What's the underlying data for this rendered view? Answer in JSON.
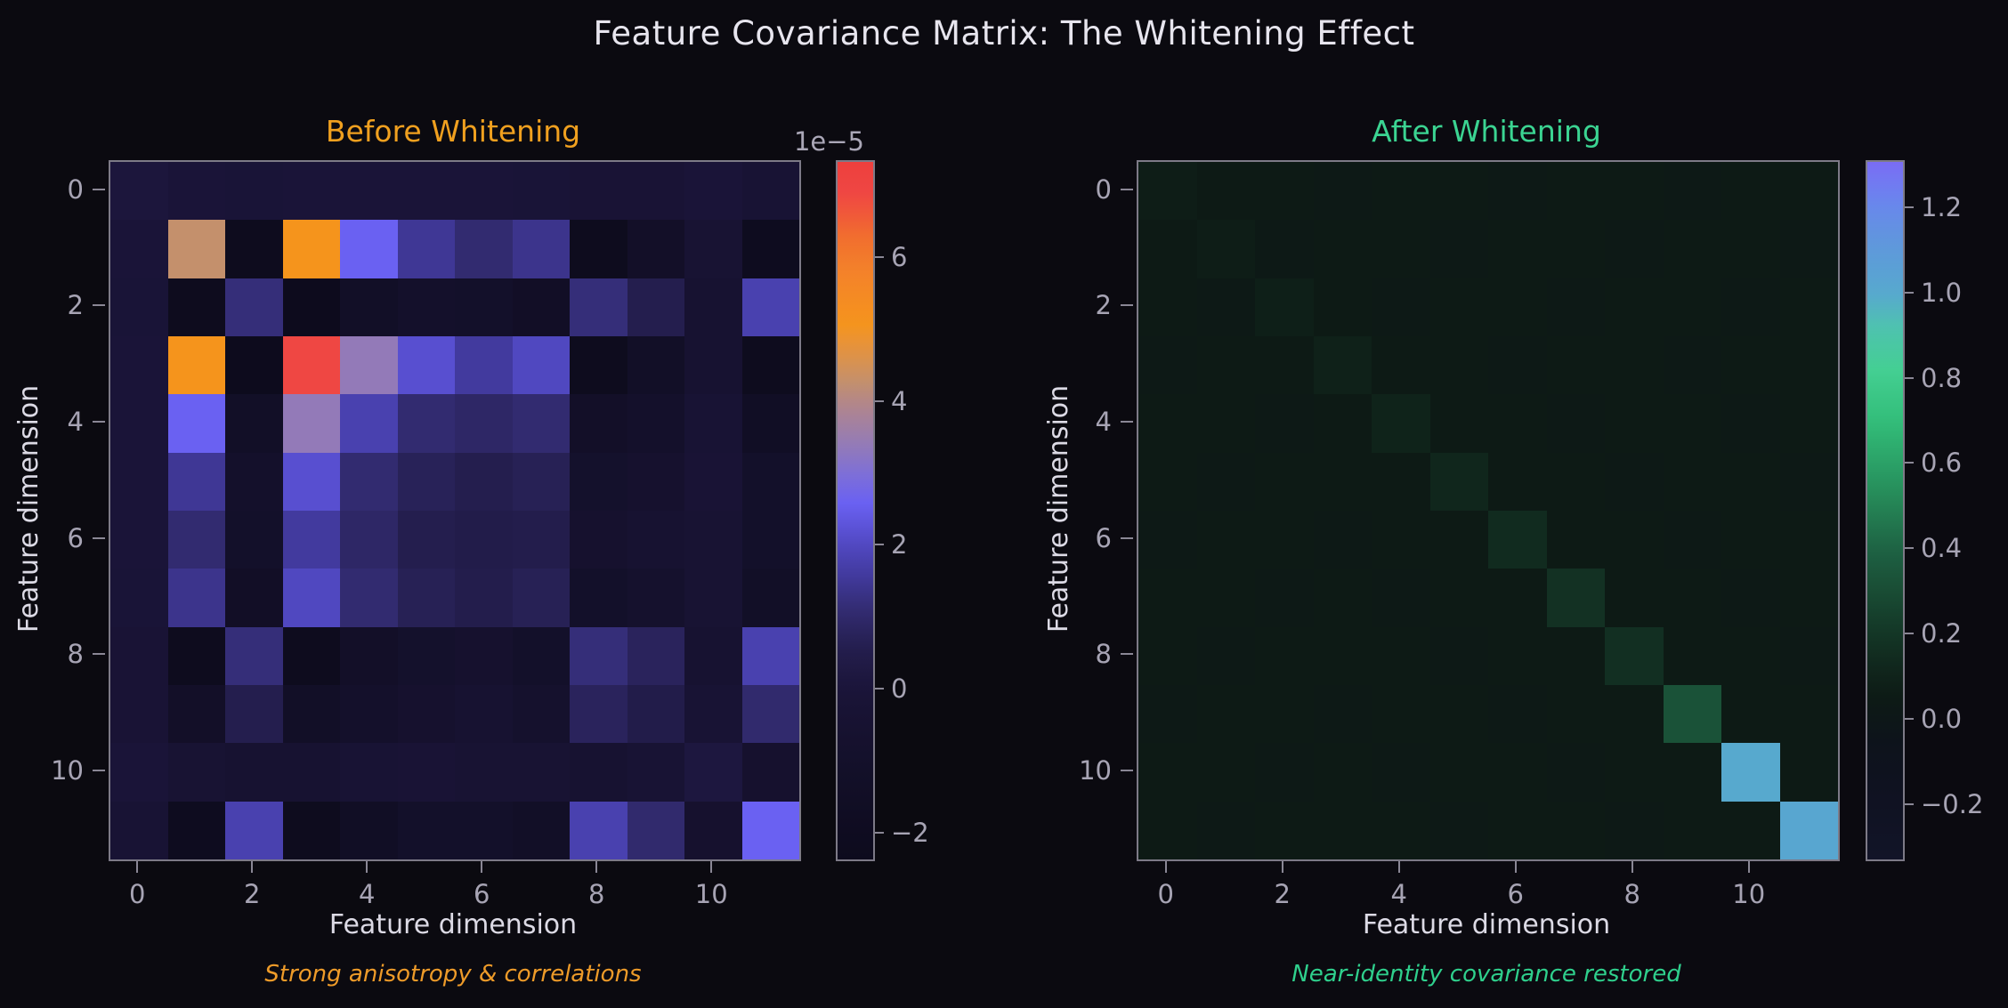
{
  "figure": {
    "title": "Feature Covariance Matrix: The Whitening Effect",
    "title_color": "#e7e5ee",
    "background": "#0b0a10"
  },
  "styles": {
    "tick_color": "#a7a4b4",
    "label_color": "#dcdae5",
    "spine_color": "#7d7a87"
  },
  "chart_data": [
    {
      "type": "heatmap",
      "title": "Before Whitening",
      "title_color": "#f0a01f",
      "xlabel": "Feature dimension",
      "ylabel": "Feature dimension",
      "xticks": [
        "0",
        "2",
        "4",
        "6",
        "8",
        "10"
      ],
      "yticks": [
        "0",
        "2",
        "4",
        "6",
        "8",
        "10"
      ],
      "tick_positions": [
        0,
        2,
        4,
        6,
        8,
        10
      ],
      "annotation": "Strong anisotropy & correlations",
      "annotation_color": "#ee9b29",
      "values_unit": "1e-5",
      "colorbar": {
        "offset_label": "1e−5",
        "vmin": -2.35,
        "vmax": 7.35,
        "ticks": [
          {
            "v": 6,
            "label": "6"
          },
          {
            "v": 4,
            "label": "4"
          },
          {
            "v": 2,
            "label": "2"
          },
          {
            "v": 0,
            "label": "0"
          },
          {
            "v": -2,
            "label": "−2"
          }
        ]
      },
      "colormap": [
        [
          -2.35,
          "#0d0b1d"
        ],
        [
          -1.5,
          "#110e25"
        ],
        [
          -0.8,
          "#15112d"
        ],
        [
          0.0,
          "#1a1438"
        ],
        [
          0.6,
          "#241e4e"
        ],
        [
          1.1,
          "#322b70"
        ],
        [
          1.6,
          "#423a9e"
        ],
        [
          2.1,
          "#544bc8"
        ],
        [
          2.6,
          "#6a61f2"
        ],
        [
          3.0,
          "#7d6fd8"
        ],
        [
          3.4,
          "#937ab8"
        ],
        [
          3.9,
          "#ad8492"
        ],
        [
          4.3,
          "#c4906c"
        ],
        [
          4.8,
          "#e8933a"
        ],
        [
          5.1,
          "#f5941c"
        ],
        [
          5.8,
          "#f4832a"
        ],
        [
          6.3,
          "#f16e2e"
        ],
        [
          6.9,
          "#ef4743"
        ],
        [
          7.35,
          "#ee3f3e"
        ]
      ],
      "matrix": [
        [
          0.1,
          0.0,
          -0.1,
          0.0,
          0.0,
          0.0,
          0.0,
          -0.1,
          -0.2,
          -0.2,
          0.0,
          -0.3
        ],
        [
          0.0,
          4.3,
          -2.2,
          5.1,
          2.6,
          1.5,
          1.1,
          1.4,
          -2.2,
          -1.2,
          -0.4,
          -2.1
        ],
        [
          -0.1,
          -2.2,
          1.2,
          -2.3,
          -1.3,
          -1.0,
          -1.1,
          -1.4,
          1.2,
          0.6,
          -0.5,
          1.8
        ],
        [
          0.0,
          5.1,
          -2.3,
          6.9,
          3.4,
          2.2,
          1.6,
          2.0,
          -2.2,
          -1.3,
          -0.5,
          -2.2
        ],
        [
          0.0,
          2.6,
          -1.3,
          3.4,
          1.8,
          1.1,
          0.95,
          1.1,
          -1.2,
          -1.0,
          -0.3,
          -1.5
        ],
        [
          0.0,
          1.5,
          -1.0,
          2.2,
          1.1,
          0.75,
          0.6,
          0.7,
          -0.9,
          -0.7,
          -0.2,
          -1.1
        ],
        [
          0.0,
          1.1,
          -1.1,
          1.6,
          0.95,
          0.6,
          0.5,
          0.55,
          -0.7,
          -0.5,
          -0.4,
          -1.1
        ],
        [
          -0.1,
          1.4,
          -1.4,
          2.0,
          1.1,
          0.7,
          0.55,
          0.7,
          -1.1,
          -0.8,
          -0.4,
          -1.3
        ],
        [
          -0.2,
          -2.2,
          1.2,
          -2.2,
          -1.2,
          -0.9,
          -0.7,
          -1.1,
          1.2,
          0.8,
          -0.5,
          1.8
        ],
        [
          -0.2,
          -1.2,
          0.6,
          -1.3,
          -1.0,
          -0.7,
          -0.5,
          -0.8,
          0.8,
          0.5,
          -0.3,
          1.05
        ],
        [
          0.0,
          -0.4,
          -0.5,
          -0.5,
          -0.3,
          -0.2,
          -0.4,
          -0.4,
          -0.5,
          -0.3,
          0.2,
          -0.7
        ],
        [
          -0.3,
          -2.1,
          1.8,
          -2.2,
          -1.5,
          -1.1,
          -1.1,
          -1.3,
          1.8,
          1.05,
          -0.7,
          2.6
        ]
      ]
    },
    {
      "type": "heatmap",
      "title": "After Whitening",
      "title_color": "#3bd492",
      "xlabel": "Feature dimension",
      "ylabel": "Feature dimension",
      "xticks": [
        "0",
        "2",
        "4",
        "6",
        "8",
        "10"
      ],
      "yticks": [
        "0",
        "2",
        "4",
        "6",
        "8",
        "10"
      ],
      "tick_positions": [
        0,
        2,
        4,
        6,
        8,
        10
      ],
      "annotation": "Near-identity covariance restored",
      "annotation_color": "#2fd08d",
      "values_unit": "1",
      "colorbar": {
        "offset_label": "",
        "vmin": -0.325,
        "vmax": 1.31,
        "ticks": [
          {
            "v": 1.2,
            "label": "1.2"
          },
          {
            "v": 1.0,
            "label": "1.0"
          },
          {
            "v": 0.8,
            "label": "0.8"
          },
          {
            "v": 0.6,
            "label": "0.6"
          },
          {
            "v": 0.4,
            "label": "0.4"
          },
          {
            "v": 0.2,
            "label": "0.2"
          },
          {
            "v": 0.0,
            "label": "0.0"
          },
          {
            "v": -0.2,
            "label": "−0.2"
          }
        ]
      },
      "colormap": [
        [
          -0.325,
          "#121428"
        ],
        [
          -0.15,
          "#0f1220"
        ],
        [
          -0.05,
          "#0d131b"
        ],
        [
          0.05,
          "#0d1a15"
        ],
        [
          0.15,
          "#112b1f"
        ],
        [
          0.25,
          "#16402c"
        ],
        [
          0.4,
          "#1e6243"
        ],
        [
          0.55,
          "#27925d"
        ],
        [
          0.7,
          "#32bd79"
        ],
        [
          0.82,
          "#44cf92"
        ],
        [
          0.92,
          "#4ec3ae"
        ],
        [
          1.0,
          "#57a9ce"
        ],
        [
          1.12,
          "#5f97dc"
        ],
        [
          1.22,
          "#6a85ee"
        ],
        [
          1.31,
          "#7a6cf5"
        ]
      ],
      "matrix": [
        [
          0.07,
          0.05,
          0.05,
          0.04,
          0.05,
          0.05,
          0.04,
          0.05,
          0.05,
          0.04,
          0.05,
          0.05
        ],
        [
          0.05,
          0.07,
          0.04,
          0.05,
          0.05,
          0.04,
          0.05,
          0.05,
          0.04,
          0.05,
          0.05,
          0.04
        ],
        [
          0.05,
          0.04,
          0.08,
          0.05,
          0.04,
          0.05,
          0.05,
          0.04,
          0.05,
          0.05,
          0.04,
          0.05
        ],
        [
          0.04,
          0.05,
          0.05,
          0.09,
          0.05,
          0.05,
          0.04,
          0.05,
          0.05,
          0.04,
          0.05,
          0.05
        ],
        [
          0.05,
          0.05,
          0.04,
          0.05,
          0.1,
          0.05,
          0.05,
          0.04,
          0.05,
          0.05,
          0.04,
          0.05
        ],
        [
          0.05,
          0.04,
          0.05,
          0.05,
          0.05,
          0.12,
          0.05,
          0.05,
          0.04,
          0.05,
          0.05,
          0.04
        ],
        [
          0.04,
          0.05,
          0.05,
          0.04,
          0.05,
          0.05,
          0.15,
          0.05,
          0.05,
          0.04,
          0.05,
          0.05
        ],
        [
          0.05,
          0.05,
          0.04,
          0.05,
          0.04,
          0.05,
          0.05,
          0.18,
          0.05,
          0.05,
          0.04,
          0.05
        ],
        [
          0.05,
          0.04,
          0.05,
          0.05,
          0.05,
          0.04,
          0.05,
          0.05,
          0.17,
          0.05,
          0.05,
          0.04
        ],
        [
          0.04,
          0.05,
          0.05,
          0.04,
          0.05,
          0.05,
          0.04,
          0.05,
          0.05,
          0.33,
          0.05,
          0.05
        ],
        [
          0.05,
          0.05,
          0.04,
          0.05,
          0.04,
          0.05,
          0.05,
          0.04,
          0.05,
          0.05,
          1.0,
          0.05
        ],
        [
          0.05,
          0.04,
          0.05,
          0.05,
          0.05,
          0.04,
          0.05,
          0.05,
          0.04,
          0.05,
          0.05,
          1.02
        ]
      ]
    }
  ]
}
